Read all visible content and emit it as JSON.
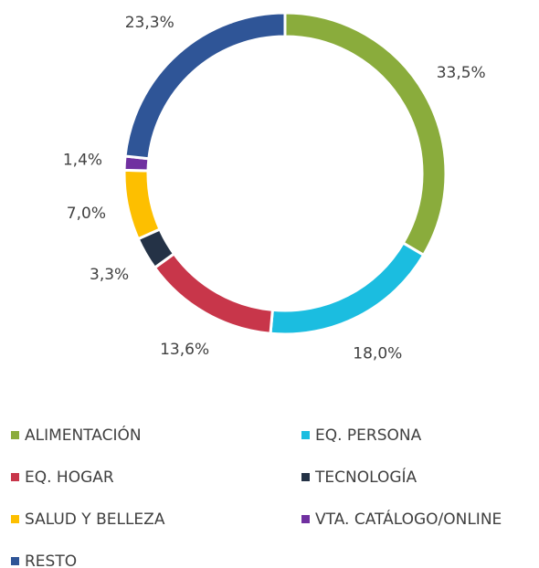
{
  "chart_data": {
    "type": "donut",
    "categories": [
      "ALIMENTACIÓN",
      "EQ. PERSONA",
      "EQ. HOGAR",
      "TECNOLOGÍA",
      "SALUD Y BELLEZA",
      "VTA. CATÁLOGO/ONLINE",
      "RESTO"
    ],
    "values": [
      33.5,
      18.0,
      13.6,
      3.3,
      7.0,
      1.4,
      23.3
    ],
    "value_labels": [
      "33,5%",
      "18,0%",
      "13,6%",
      "3,3%",
      "7,0%",
      "1,4%",
      "23,3%"
    ],
    "colors": [
      "#8aac3c",
      "#1bbde0",
      "#c8364a",
      "#243246",
      "#fdbf00",
      "#7030a0",
      "#2f5597"
    ],
    "legend": "bottom"
  }
}
